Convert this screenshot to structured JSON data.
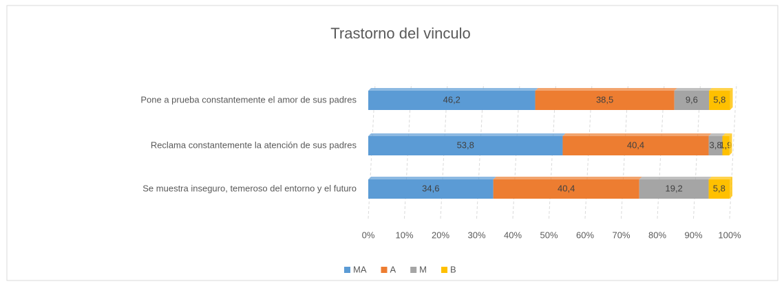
{
  "chart_data": {
    "type": "bar_stacked_horizontal",
    "title": "Trastorno del vinculo",
    "categories": [
      "Pone a prueba constantemente el amor de sus padres",
      "Reclama constantemente la atención de sus padres",
      "Se muestra inseguro, temeroso del entorno y el futuro"
    ],
    "series": [
      {
        "name": "MA",
        "color": "#5b9bd5",
        "values": [
          46.2,
          53.8,
          34.6
        ],
        "value_labels": [
          "46,2",
          "53,8",
          "34,6"
        ]
      },
      {
        "name": "A",
        "color": "#ed7d31",
        "values": [
          38.5,
          40.4,
          40.4
        ],
        "value_labels": [
          "38,5",
          "40,4",
          "40,4"
        ]
      },
      {
        "name": "M",
        "color": "#a5a5a5",
        "values": [
          9.6,
          3.8,
          19.2
        ],
        "value_labels": [
          "9,6",
          "3,8",
          "19,2"
        ]
      },
      {
        "name": "B",
        "color": "#ffc000",
        "values": [
          5.8,
          1.9,
          5.8
        ],
        "value_labels": [
          "5,8",
          "1,9",
          "5,8"
        ]
      }
    ],
    "xlim": [
      0,
      100
    ],
    "xticks": [
      {
        "value": 0,
        "label": "0%"
      },
      {
        "value": 10,
        "label": "10%"
      },
      {
        "value": 20,
        "label": "20%"
      },
      {
        "value": 30,
        "label": "30%"
      },
      {
        "value": 40,
        "label": "40%"
      },
      {
        "value": 50,
        "label": "50%"
      },
      {
        "value": 60,
        "label": "60%"
      },
      {
        "value": 70,
        "label": "70%"
      },
      {
        "value": 80,
        "label": "80%"
      },
      {
        "value": 90,
        "label": "90%"
      },
      {
        "value": 100,
        "label": "100%"
      }
    ],
    "grid": true,
    "legend": "bottom"
  }
}
